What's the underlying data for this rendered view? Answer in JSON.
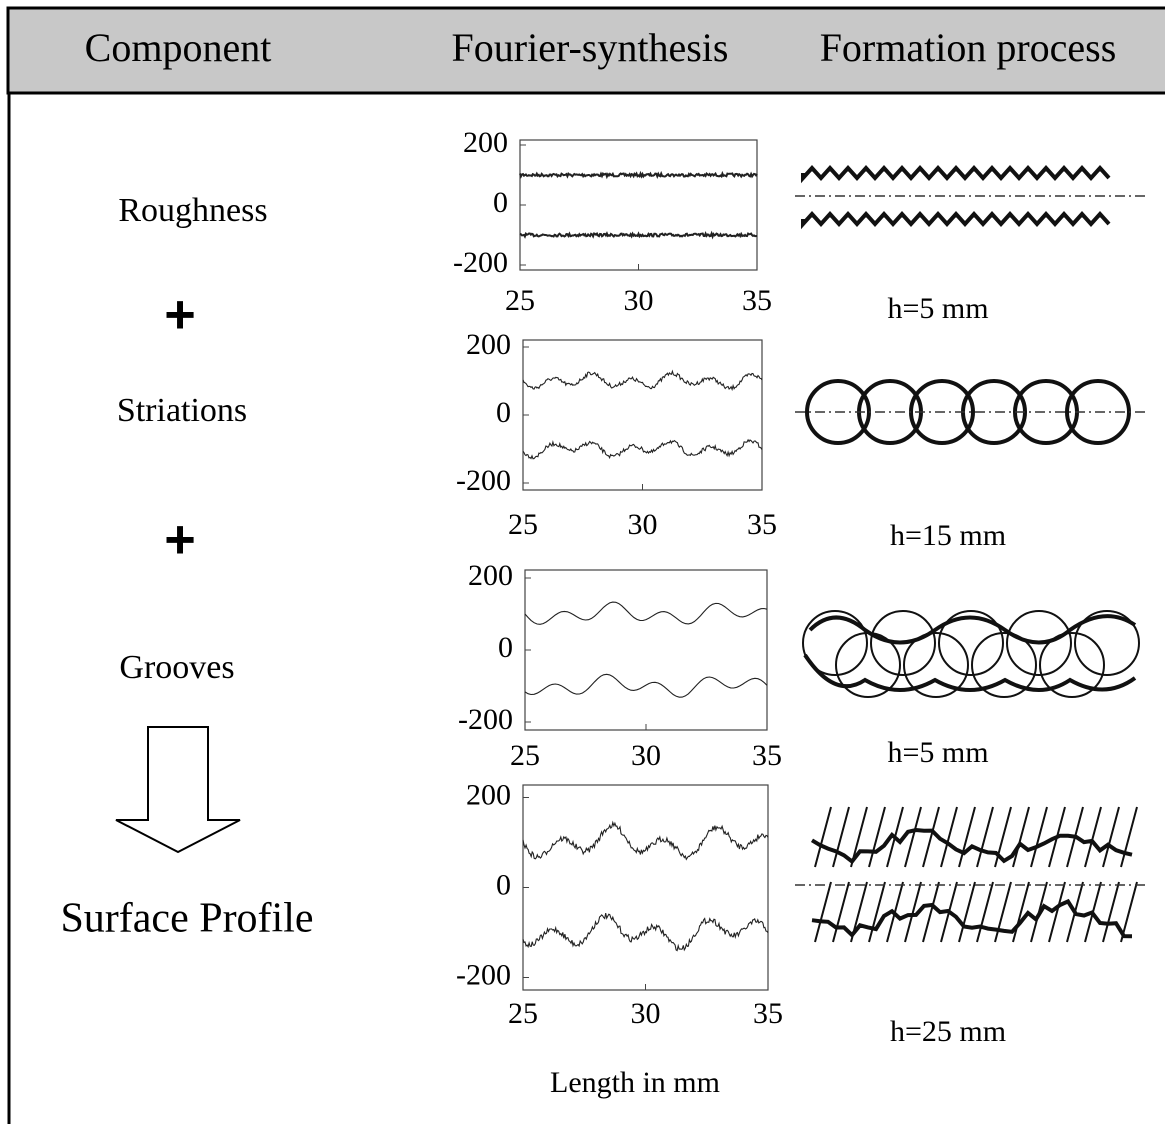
{
  "header": {
    "columns": [
      "Component",
      "Fourier-synthesis",
      "Formation process"
    ]
  },
  "components": [
    "Roughness",
    "Striations",
    "Grooves",
    "Surface Profile"
  ],
  "operators": [
    "+",
    "+"
  ],
  "plots": [
    {
      "xlim": [
        25,
        35
      ],
      "ylim": [
        -250,
        250
      ],
      "xticks": [
        25,
        30,
        35
      ],
      "yticks": [
        200,
        0,
        -200
      ]
    },
    {
      "xlim": [
        25,
        35
      ],
      "ylim": [
        -250,
        250
      ],
      "xticks": [
        25,
        30,
        35
      ],
      "yticks": [
        200,
        0,
        -200
      ]
    },
    {
      "xlim": [
        25,
        35
      ],
      "ylim": [
        -250,
        250
      ],
      "xticks": [
        25,
        30,
        35
      ],
      "yticks": [
        200,
        0,
        -200
      ]
    },
    {
      "xlim": [
        25,
        35
      ],
      "ylim": [
        -250,
        250
      ],
      "xticks": [
        25,
        30,
        35
      ],
      "yticks": [
        200,
        0,
        -200
      ]
    }
  ],
  "x_label": "Length in mm",
  "formation_labels": [
    "h=5 mm",
    "h=15 mm",
    "h=5 mm",
    "h=25 mm"
  ]
}
